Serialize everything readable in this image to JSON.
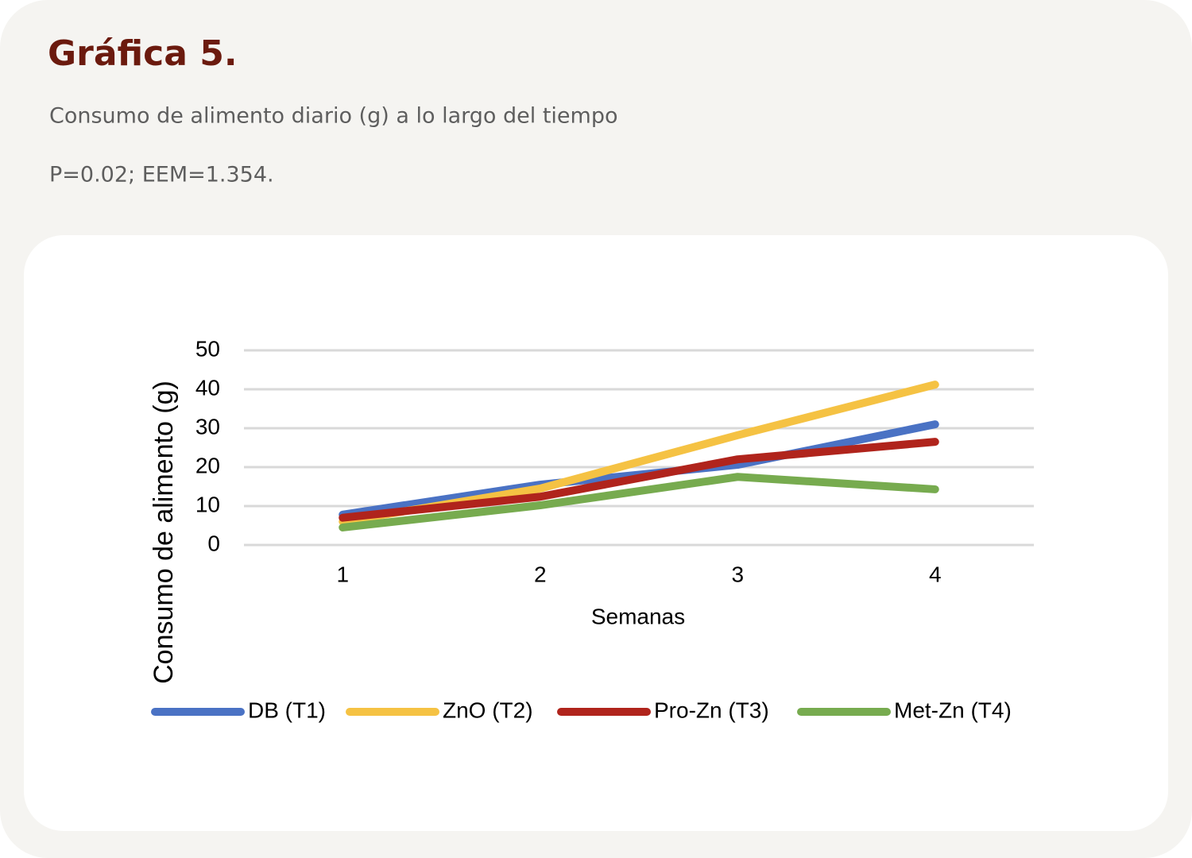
{
  "chart_data": {
    "type": "line",
    "title": "Gráfica 5.",
    "subtitle": "Consumo de alimento diario (g) a lo largo del tiempo",
    "note": "P=0.02; EEM=1.354.",
    "x_label": "Semanas",
    "y_label": "Consumo de alimento (g)",
    "categories": [
      "1",
      "2",
      "3",
      "4"
    ],
    "series": [
      {
        "name": "DB (T1)",
        "color": "#4a72c4",
        "values": [
          7.8,
          15.5,
          20.6,
          31
        ]
      },
      {
        "name": "ZnO (T2)",
        "color": "#f5c243",
        "values": [
          6,
          14.5,
          28.2,
          41.2
        ]
      },
      {
        "name": "Pro-Zn (T3)",
        "color": "#b0241c",
        "values": [
          7,
          12.4,
          22,
          26.5
        ]
      },
      {
        "name": "Met-Zn (T4)",
        "color": "#77ab4f",
        "values": [
          4.5,
          10.2,
          17.5,
          14.3
        ]
      }
    ],
    "ylim": [
      0,
      50
    ],
    "yticks": [
      0,
      10,
      20,
      30,
      40,
      50
    ],
    "grid": true,
    "legend": "bottom"
  }
}
